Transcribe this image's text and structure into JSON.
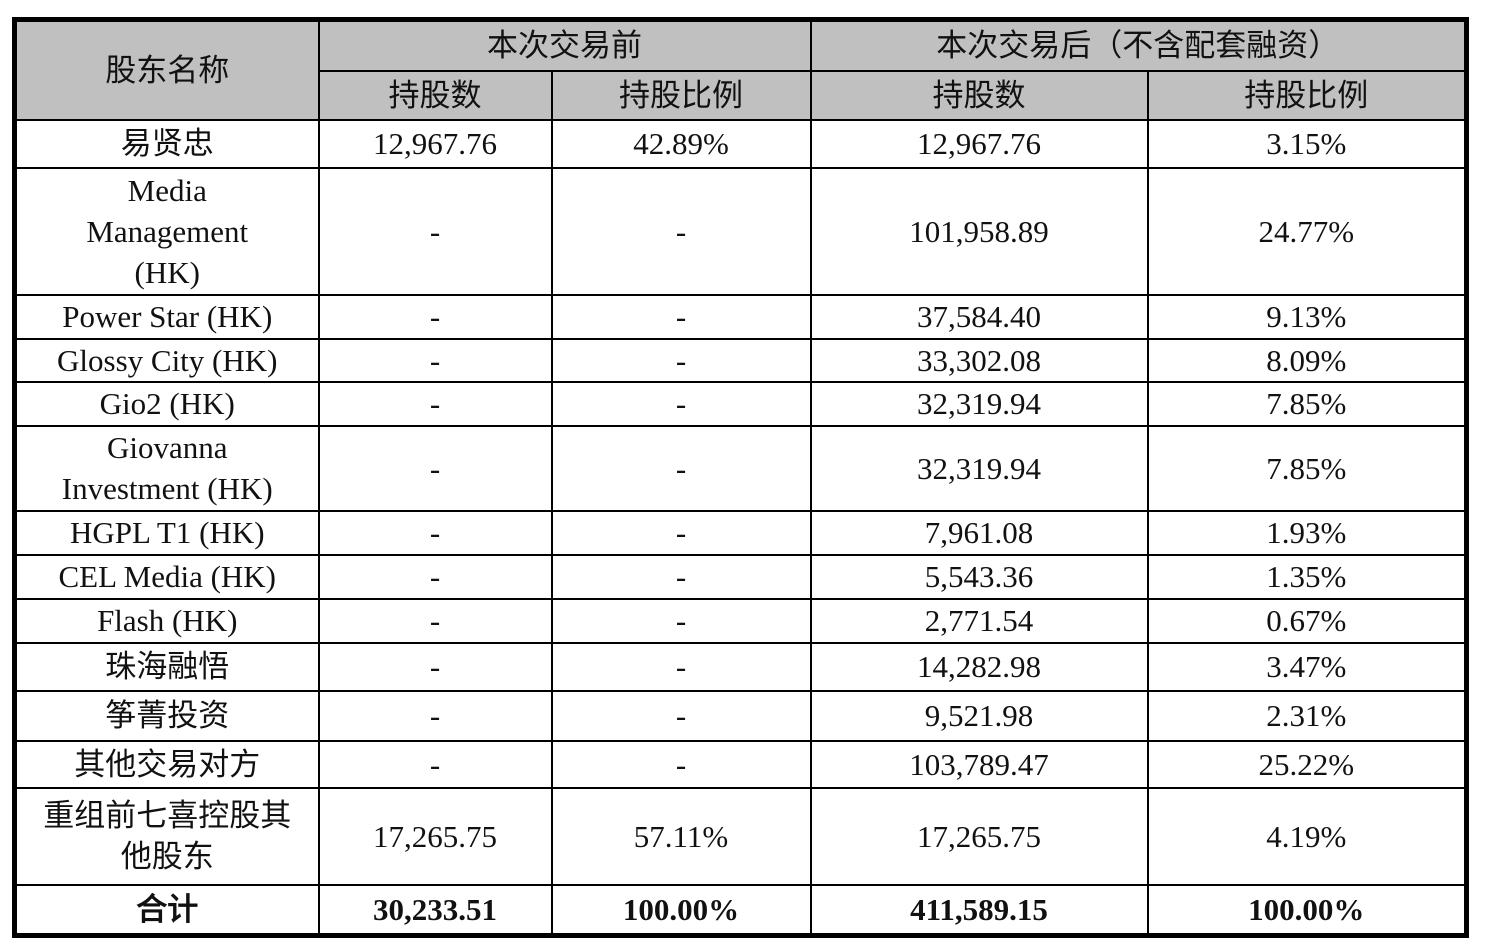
{
  "header": {
    "name_col": "股东名称",
    "group_before": "本次交易前",
    "group_after": "本次交易后（不含配套融资）",
    "shares": "持股数",
    "ratio": "持股比例"
  },
  "rows": [
    {
      "name": "易贤忠",
      "before_shares": "12,967.76",
      "before_ratio": "42.89%",
      "after_shares": "12,967.76",
      "after_ratio": "3.15%"
    },
    {
      "name": "Media Management (HK)",
      "before_shares": "-",
      "before_ratio": "-",
      "after_shares": "101,958.89",
      "after_ratio": "24.77%"
    },
    {
      "name": "Power Star (HK)",
      "before_shares": "-",
      "before_ratio": "-",
      "after_shares": "37,584.40",
      "after_ratio": "9.13%"
    },
    {
      "name": "Glossy City (HK)",
      "before_shares": "-",
      "before_ratio": "-",
      "after_shares": "33,302.08",
      "after_ratio": "8.09%"
    },
    {
      "name": "Gio2 (HK)",
      "before_shares": "-",
      "before_ratio": "-",
      "after_shares": "32,319.94",
      "after_ratio": "7.85%"
    },
    {
      "name": "Giovanna Investment (HK)",
      "before_shares": "-",
      "before_ratio": "-",
      "after_shares": "32,319.94",
      "after_ratio": "7.85%"
    },
    {
      "name": "HGPL T1 (HK)",
      "before_shares": "-",
      "before_ratio": "-",
      "after_shares": "7,961.08",
      "after_ratio": "1.93%"
    },
    {
      "name": "CEL Media (HK)",
      "before_shares": "-",
      "before_ratio": "-",
      "after_shares": "5,543.36",
      "after_ratio": "1.35%"
    },
    {
      "name": "Flash (HK)",
      "before_shares": "-",
      "before_ratio": "-",
      "after_shares": "2,771.54",
      "after_ratio": "0.67%"
    },
    {
      "name": "珠海融悟",
      "before_shares": "-",
      "before_ratio": "-",
      "after_shares": "14,282.98",
      "after_ratio": "3.47%"
    },
    {
      "name": "筝菁投资",
      "before_shares": "-",
      "before_ratio": "-",
      "after_shares": "9,521.98",
      "after_ratio": "2.31%"
    },
    {
      "name": "其他交易对方",
      "before_shares": "-",
      "before_ratio": "-",
      "after_shares": "103,789.47",
      "after_ratio": "25.22%"
    },
    {
      "name": "重组前七喜控股其他股东",
      "before_shares": "17,265.75",
      "before_ratio": "57.11%",
      "after_shares": "17,265.75",
      "after_ratio": "4.19%"
    }
  ],
  "total": {
    "name": "合计",
    "before_shares": "30,233.51",
    "before_ratio": "100.00%",
    "after_shares": "411,589.15",
    "after_ratio": "100.00%"
  }
}
